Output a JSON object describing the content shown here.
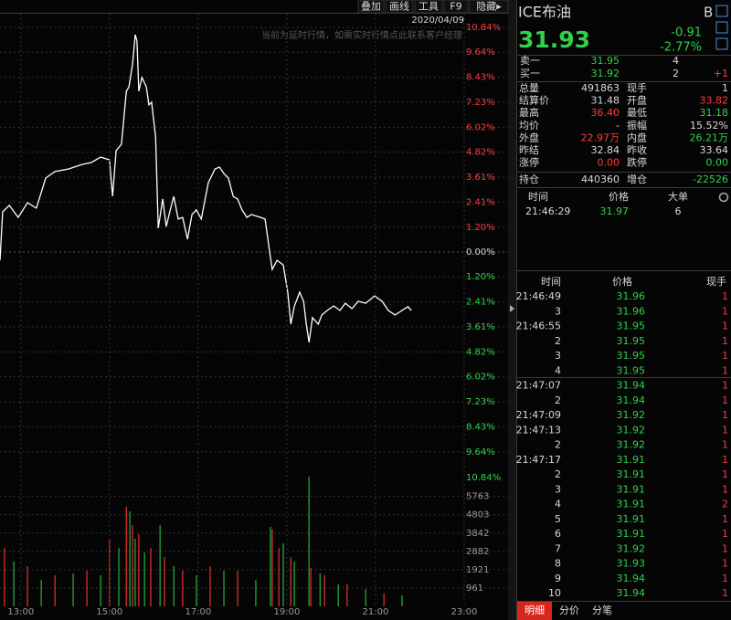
{
  "toolbar": [
    "叠加",
    "画线",
    "工具",
    "F9",
    "隐藏▸"
  ],
  "chart_data": [
    {
      "type": "line",
      "date": "2020/04/09",
      "annotation": "当前为延时行情，如需实时行情点此联系客户经理",
      "xlim": [
        12.53,
        23.99
      ],
      "ylim": [
        -10.84,
        10.84
      ],
      "grid": true,
      "yticks": [
        {
          "value": 10.84,
          "label": "10.84%"
        },
        {
          "value": 9.64,
          "label": "9.64%"
        },
        {
          "value": 8.43,
          "label": "8.43%"
        },
        {
          "value": 7.23,
          "label": "7.23%"
        },
        {
          "value": 6.02,
          "label": "6.02%"
        },
        {
          "value": 4.82,
          "label": "4.82%"
        },
        {
          "value": 3.61,
          "label": "3.61%"
        },
        {
          "value": 2.41,
          "label": "2.41%"
        },
        {
          "value": 1.2,
          "label": "1.20%"
        },
        {
          "value": 0,
          "label": "0.00%"
        },
        {
          "value": -1.2,
          "label": "1.20%"
        },
        {
          "value": -2.41,
          "label": "2.41%"
        },
        {
          "value": -3.61,
          "label": "3.61%"
        },
        {
          "value": -4.82,
          "label": "4.82%"
        },
        {
          "value": -6.02,
          "label": "6.02%"
        },
        {
          "value": -7.23,
          "label": "7.23%"
        },
        {
          "value": -8.43,
          "label": "8.43%"
        },
        {
          "value": -9.64,
          "label": "9.64%"
        }
      ],
      "series": [
        {
          "color": "#ffffff",
          "x": [
            12.53,
            12.59,
            12.74,
            12.94,
            13.15,
            13.35,
            13.56,
            13.77,
            14.08,
            14.39,
            14.59,
            14.8,
            15.0,
            15.07,
            15.15,
            15.27,
            15.38,
            15.44,
            15.52,
            15.58,
            15.62,
            15.66,
            15.73,
            15.83,
            15.89,
            15.95,
            16.04,
            16.1,
            16.2,
            16.28,
            16.37,
            16.45,
            16.55,
            16.65,
            16.76,
            16.86,
            16.96,
            17.07,
            17.23,
            17.38,
            17.48,
            17.58,
            17.68,
            17.79,
            17.89,
            17.99,
            18.1,
            18.2,
            18.41,
            18.51,
            18.61,
            18.67,
            18.78,
            18.92,
            19.02,
            19.09,
            19.17,
            19.29,
            19.38,
            19.44,
            19.5,
            19.58,
            19.71,
            19.79,
            19.91,
            20.06,
            20.2,
            20.32,
            20.47,
            20.61,
            20.78,
            20.98,
            21.15,
            21.29,
            21.44,
            21.6,
            21.73,
            21.81
          ],
          "values": [
            -0.4,
            1.94,
            2.25,
            1.67,
            2.38,
            2.12,
            3.57,
            3.88,
            4.01,
            4.23,
            4.32,
            4.58,
            4.45,
            2.69,
            4.89,
            5.2,
            7.76,
            7.98,
            9.08,
            10.49,
            10.18,
            7.76,
            8.42,
            7.98,
            7.1,
            7.23,
            5.55,
            1.15,
            2.56,
            1.23,
            2.03,
            2.69,
            1.59,
            1.67,
            0.62,
            1.81,
            2.03,
            1.59,
            3.35,
            4.01,
            4.1,
            3.79,
            3.57,
            2.69,
            2.56,
            2.03,
            1.67,
            1.81,
            1.67,
            1.59,
            0.04,
            -0.84,
            -0.4,
            -0.62,
            -1.94,
            -3.48,
            -2.6,
            -1.94,
            -2.38,
            -3.48,
            -4.36,
            -3.17,
            -3.48,
            -3.04,
            -2.82,
            -2.6,
            -2.82,
            -2.47,
            -2.73,
            -2.38,
            -2.47,
            -2.12,
            -2.38,
            -2.82,
            -3.04,
            -2.82,
            -2.64,
            -2.82
          ]
        }
      ]
    },
    {
      "type": "bar",
      "overlay_label": "10.84%",
      "xlim": [
        12.53,
        23.99
      ],
      "ylim": [
        0,
        6800
      ],
      "grid": true,
      "yticks": [
        961,
        1921,
        2882,
        3842,
        4803,
        5763
      ],
      "xticks": [
        {
          "value": 13,
          "label": "13:00"
        },
        {
          "value": 15,
          "label": "15:00"
        },
        {
          "value": 17,
          "label": "17:00"
        },
        {
          "value": 19,
          "label": "19:00"
        },
        {
          "value": 21,
          "label": "21:00"
        },
        {
          "value": 23,
          "label": "23:00"
        }
      ],
      "series": [
        {
          "color": "#e8332e",
          "x": [
            12.63,
            13.15,
            13.77,
            14.49,
            15.0,
            15.38,
            15.52,
            15.66,
            15.93,
            16.24,
            16.65,
            17.27,
            17.89,
            18.67,
            18.82,
            19.09,
            19.54,
            19.85,
            20.36,
            21.19
          ],
          "values": [
            3066,
            2108,
            1629,
            1868,
            3545,
            5221,
            4263,
            3784,
            3066,
            2587,
            1868,
            2108,
            1868,
            4024,
            3066,
            2587,
            2012,
            1629,
            1150,
            671
          ]
        },
        {
          "color": "#25b43c",
          "x": [
            12.84,
            13.46,
            14.18,
            14.8,
            15.21,
            15.46,
            15.58,
            15.79,
            16.14,
            16.45,
            16.96,
            17.58,
            18.3,
            18.63,
            18.92,
            19.17,
            19.5,
            19.75,
            20.16,
            20.78,
            21.6
          ],
          "values": [
            2347,
            1389,
            1724,
            1629,
            3066,
            4982,
            3545,
            2826,
            4263,
            2108,
            1629,
            1868,
            1389,
            4167,
            3305,
            2347,
            6802,
            1724,
            1150,
            910,
            575
          ]
        }
      ]
    }
  ],
  "quote": {
    "symbol": "ICE布油",
    "badge": "B",
    "price": "31.93",
    "change": "-0.91",
    "change_pct": "-2.77%",
    "book": [
      [
        "卖一",
        "31.95",
        "4",
        ""
      ],
      [
        "买一",
        "31.92",
        "2",
        "+1"
      ]
    ],
    "stats": [
      [
        "总量",
        "491863",
        "现手",
        "1"
      ],
      [
        "结算价",
        "31.48",
        "开盘",
        "33.82"
      ],
      [
        "最高",
        "36.40",
        "最低",
        "31.18"
      ],
      [
        "均价",
        "-",
        "振幅",
        "15.52%"
      ],
      [
        "外盘",
        "22.97万",
        "内盘",
        "26.21万"
      ],
      [
        "昨结",
        "32.84",
        "昨收",
        "33.64"
      ],
      [
        "涨停",
        "0.00",
        "跌停",
        "0.00"
      ],
      [
        "持仓",
        "440360",
        "增仓",
        "-22526"
      ]
    ],
    "big_trades": {
      "header": [
        "时间",
        "价格",
        "大单"
      ],
      "rows": [
        [
          "21:46:29",
          "31.97",
          "6"
        ]
      ]
    },
    "ticks": {
      "header": [
        "时间",
        "价格",
        "现手"
      ],
      "rows": [
        [
          "21:46:49",
          "31.96",
          "1"
        ],
        [
          "3",
          "31.96",
          "1"
        ],
        [
          "21:46:55",
          "31.95",
          "1"
        ],
        [
          "2",
          "31.95",
          "1"
        ],
        [
          "3",
          "31.95",
          "1"
        ],
        [
          "4",
          "31.95",
          "1"
        ],
        [
          "21:47:07",
          "31.94",
          "1"
        ],
        [
          "2",
          "31.94",
          "1"
        ],
        [
          "21:47:09",
          "31.92",
          "1"
        ],
        [
          "21:47:13",
          "31.92",
          "1"
        ],
        [
          "2",
          "31.92",
          "1"
        ],
        [
          "21:47:17",
          "31.91",
          "1"
        ],
        [
          "2",
          "31.91",
          "1"
        ],
        [
          "3",
          "31.91",
          "1"
        ],
        [
          "4",
          "31.91",
          "2"
        ],
        [
          "5",
          "31.91",
          "1"
        ],
        [
          "6",
          "31.91",
          "1"
        ],
        [
          "7",
          "31.92",
          "1"
        ],
        [
          "8",
          "31.93",
          "1"
        ],
        [
          "9",
          "31.94",
          "1"
        ],
        [
          "10",
          "31.94",
          "1"
        ]
      ]
    }
  },
  "tabs": [
    "明细",
    "分价",
    "分笔"
  ]
}
